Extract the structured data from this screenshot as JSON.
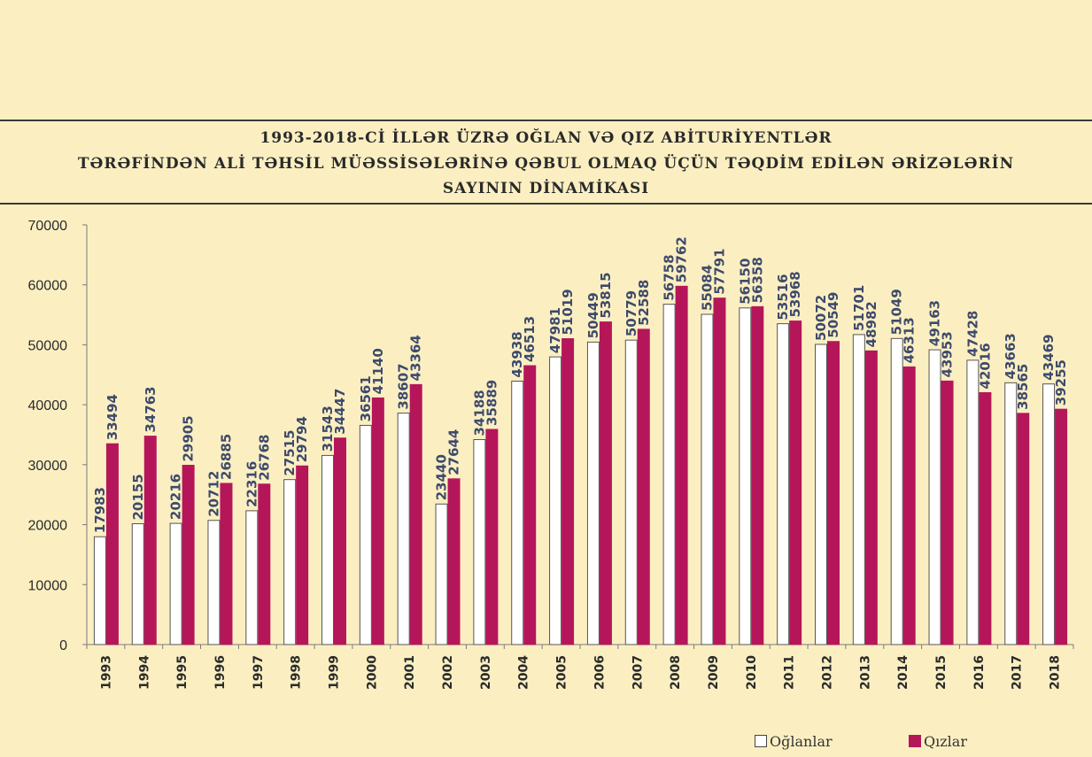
{
  "chart_data": {
    "type": "bar",
    "title_lines": [
      "1993-2018-Cİ İLLƏR ÜZRƏ OĞLAN VƏ QIZ ABİTURİYENTLƏR",
      "TƏRƏFİNDƏN ALİ TƏHSİL MÜƏSSİSƏLƏRİNƏ QƏBUL OLMAQ ÜÇÜN TƏQDİM EDİLƏN ƏRİZƏLƏRİN",
      "SAYININ DİNAMİKASI"
    ],
    "categories": [
      "1993",
      "1994",
      "1995",
      "1996",
      "1997",
      "1998",
      "1999",
      "2000",
      "2001",
      "2002",
      "2003",
      "2004",
      "2005",
      "2006",
      "2007",
      "2008",
      "2009",
      "2010",
      "2011",
      "2012",
      "2013",
      "2014",
      "2015",
      "2016",
      "2017",
      "2018"
    ],
    "series": [
      {
        "name": "Oğlanlar",
        "color": "#ffffff",
        "values": [
          17983,
          20155,
          20216,
          20712,
          22316,
          27515,
          31543,
          36561,
          38607,
          23440,
          34188,
          43938,
          47981,
          50449,
          50779,
          56758,
          55084,
          56150,
          53516,
          50072,
          51701,
          51049,
          49163,
          47428,
          43663,
          43469
        ]
      },
      {
        "name": "Qızlar",
        "color": "#b5165a",
        "values": [
          33494,
          34763,
          29905,
          26885,
          26768,
          29794,
          34447,
          41140,
          43364,
          27644,
          35889,
          46513,
          51019,
          53815,
          52588,
          59762,
          57791,
          56358,
          53968,
          50549,
          48982,
          46313,
          43953,
          42016,
          38565,
          39255
        ]
      }
    ],
    "ylim": [
      0,
      70000
    ],
    "yticks": [
      0,
      10000,
      20000,
      30000,
      40000,
      50000,
      60000,
      70000
    ],
    "legend_position": "bottom-right",
    "grid": false
  },
  "legend": {
    "boys_label": "Oğlanlar",
    "girls_label": "Qızlar"
  }
}
